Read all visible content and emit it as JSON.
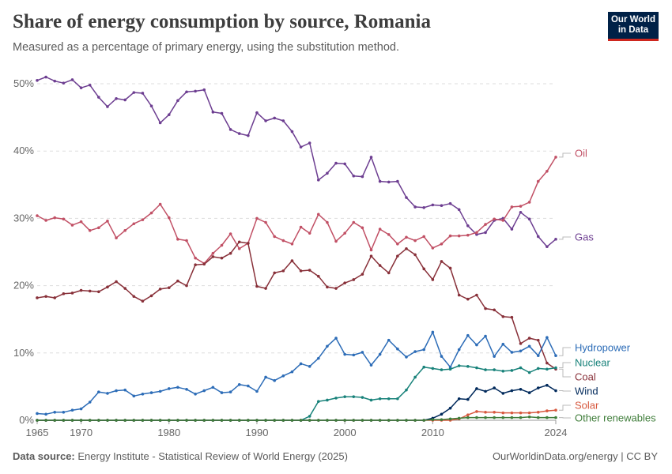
{
  "header": {
    "title": "Share of energy consumption by source, Romania",
    "subtitle": "Measured as a percentage of primary energy, using the substitution method."
  },
  "logo": {
    "line1": "Our World",
    "line2": "in Data"
  },
  "footer": {
    "source_label": "Data source:",
    "source_text": "Energy Institute - Statistical Review of World Energy (2025)",
    "credit": "OurWorldinData.org/energy | CC BY"
  },
  "chart_data": {
    "type": "line",
    "x_ticks": [
      1965,
      1970,
      1980,
      1990,
      2000,
      2010,
      2024
    ],
    "y_ticks": [
      0,
      10,
      20,
      30,
      40,
      50
    ],
    "y_tick_labels": [
      "0%",
      "10%",
      "20%",
      "30%",
      "40%",
      "50%"
    ],
    "xlim": [
      1965,
      2024
    ],
    "ylim": [
      0,
      52
    ],
    "grid": "horizontal dashed",
    "legend": "line-end labels on the right",
    "x": [
      1965,
      1966,
      1967,
      1968,
      1969,
      1970,
      1971,
      1972,
      1973,
      1974,
      1975,
      1976,
      1977,
      1978,
      1979,
      1980,
      1981,
      1982,
      1983,
      1984,
      1985,
      1986,
      1987,
      1988,
      1989,
      1990,
      1991,
      1992,
      1993,
      1994,
      1995,
      1996,
      1997,
      1998,
      1999,
      2000,
      2001,
      2002,
      2003,
      2004,
      2005,
      2006,
      2007,
      2008,
      2009,
      2010,
      2011,
      2012,
      2013,
      2014,
      2015,
      2016,
      2017,
      2018,
      2019,
      2020,
      2021,
      2022,
      2023,
      2024
    ],
    "series": [
      {
        "name": "Gas",
        "color": "#6d3e91",
        "values": [
          50.5,
          51.0,
          50.4,
          50.1,
          50.6,
          49.4,
          49.8,
          48.0,
          46.6,
          47.8,
          47.6,
          48.7,
          48.6,
          46.7,
          44.2,
          45.4,
          47.5,
          48.8,
          48.9,
          49.1,
          45.8,
          45.6,
          43.2,
          42.6,
          42.3,
          45.7,
          44.5,
          44.9,
          44.5,
          42.9,
          40.6,
          41.2,
          35.7,
          36.7,
          38.2,
          38.1,
          36.3,
          36.2,
          39.1,
          35.5,
          35.4,
          35.5,
          33.1,
          31.7,
          31.6,
          32.0,
          31.9,
          32.2,
          31.3,
          28.9,
          27.6,
          27.9,
          29.7,
          30.0,
          28.4,
          30.9,
          29.9,
          27.3,
          25.8,
          26.9
        ]
      },
      {
        "name": "Oil",
        "color": "#c15065",
        "values": [
          30.4,
          29.7,
          30.1,
          29.9,
          29.0,
          29.5,
          28.2,
          28.6,
          29.6,
          27.1,
          28.2,
          29.2,
          29.8,
          30.8,
          32.1,
          30.1,
          26.9,
          26.7,
          24.1,
          23.3,
          24.8,
          26.0,
          27.7,
          25.5,
          26.3,
          30.0,
          29.4,
          27.3,
          26.7,
          26.2,
          28.7,
          27.8,
          30.6,
          29.4,
          26.6,
          27.8,
          29.4,
          28.6,
          25.3,
          28.4,
          27.6,
          26.2,
          27.2,
          26.7,
          27.3,
          25.6,
          26.2,
          27.4,
          27.4,
          27.5,
          27.9,
          29.1,
          29.9,
          29.7,
          31.7,
          31.8,
          32.4,
          35.5,
          37.0,
          39.1
        ]
      },
      {
        "name": "Coal",
        "color": "#883039",
        "values": [
          18.2,
          18.4,
          18.2,
          18.8,
          18.9,
          19.3,
          19.2,
          19.1,
          19.8,
          20.6,
          19.6,
          18.4,
          17.7,
          18.5,
          19.5,
          19.7,
          20.7,
          20.0,
          23.1,
          23.2,
          24.3,
          24.1,
          24.8,
          26.5,
          26.3,
          19.9,
          19.6,
          21.9,
          22.2,
          23.7,
          22.2,
          22.3,
          21.4,
          19.8,
          19.6,
          20.4,
          20.9,
          21.7,
          24.4,
          23.0,
          21.9,
          24.4,
          25.5,
          24.6,
          22.5,
          20.9,
          23.6,
          22.6,
          18.6,
          18.0,
          18.6,
          16.6,
          16.4,
          15.4,
          15.3,
          11.4,
          12.2,
          11.9,
          8.5,
          7.6
        ]
      },
      {
        "name": "Hydropower",
        "color": "#2c6cb7",
        "values": [
          1.0,
          0.9,
          1.2,
          1.2,
          1.5,
          1.7,
          2.7,
          4.2,
          4.0,
          4.4,
          4.5,
          3.6,
          3.9,
          4.1,
          4.3,
          4.7,
          4.9,
          4.6,
          3.9,
          4.4,
          4.9,
          4.1,
          4.2,
          5.3,
          5.1,
          4.3,
          6.4,
          5.9,
          6.6,
          7.2,
          8.4,
          8.0,
          9.2,
          11.0,
          12.2,
          9.8,
          9.7,
          10.1,
          8.2,
          9.8,
          11.9,
          10.6,
          9.4,
          10.2,
          10.5,
          13.1,
          9.5,
          7.9,
          10.5,
          12.6,
          11.2,
          12.5,
          9.5,
          11.3,
          10.1,
          10.3,
          11.0,
          9.6,
          12.3,
          9.6
        ]
      },
      {
        "name": "Nuclear",
        "color": "#18827a",
        "values": [
          0,
          0,
          0,
          0,
          0,
          0,
          0,
          0,
          0,
          0,
          0,
          0,
          0,
          0,
          0,
          0,
          0,
          0,
          0,
          0,
          0,
          0,
          0,
          0,
          0,
          0,
          0,
          0,
          0,
          0,
          0,
          0.6,
          2.8,
          3.0,
          3.3,
          3.5,
          3.5,
          3.4,
          3.0,
          3.2,
          3.2,
          3.2,
          4.5,
          6.4,
          7.9,
          7.7,
          7.5,
          7.6,
          8.1,
          8.0,
          7.8,
          7.5,
          7.5,
          7.3,
          7.4,
          7.8,
          7.1,
          7.7,
          7.6,
          7.8
        ]
      },
      {
        "name": "Solar",
        "color": "#d7593f",
        "values": [
          0,
          0,
          0,
          0,
          0,
          0,
          0,
          0,
          0,
          0,
          0,
          0,
          0,
          0,
          0,
          0,
          0,
          0,
          0,
          0,
          0,
          0,
          0,
          0,
          0,
          0,
          0,
          0,
          0,
          0,
          0,
          0,
          0,
          0,
          0,
          0,
          0,
          0,
          0,
          0,
          0,
          0,
          0,
          0,
          0,
          0,
          0,
          0,
          0.2,
          0.8,
          1.3,
          1.2,
          1.2,
          1.1,
          1.1,
          1.1,
          1.1,
          1.2,
          1.4,
          1.5
        ]
      },
      {
        "name": "Wind",
        "color": "#00295b",
        "values": [
          0,
          0,
          0,
          0,
          0,
          0,
          0,
          0,
          0,
          0,
          0,
          0,
          0,
          0,
          0,
          0,
          0,
          0,
          0,
          0,
          0,
          0,
          0,
          0,
          0,
          0,
          0,
          0,
          0,
          0,
          0,
          0,
          0,
          0,
          0,
          0,
          0,
          0,
          0,
          0,
          0,
          0,
          0,
          0,
          0,
          0.3,
          0.9,
          1.8,
          3.2,
          3.1,
          4.7,
          4.3,
          4.8,
          4.0,
          4.4,
          4.6,
          4.1,
          4.8,
          5.2,
          4.4
        ]
      },
      {
        "name": "Other renewables",
        "color": "#3f7d3a",
        "values": [
          0,
          0,
          0,
          0,
          0,
          0,
          0,
          0,
          0,
          0,
          0,
          0,
          0,
          0,
          0,
          0,
          0,
          0,
          0,
          0,
          0,
          0,
          0,
          0,
          0,
          0,
          0,
          0,
          0,
          0,
          0,
          0,
          0,
          0,
          0,
          0,
          0,
          0,
          0,
          0,
          0,
          0,
          0,
          0,
          0,
          0.1,
          0.1,
          0.2,
          0.3,
          0.4,
          0.4,
          0.4,
          0.4,
          0.4,
          0.4,
          0.4,
          0.5,
          0.4,
          0.4,
          0.4
        ]
      }
    ]
  }
}
